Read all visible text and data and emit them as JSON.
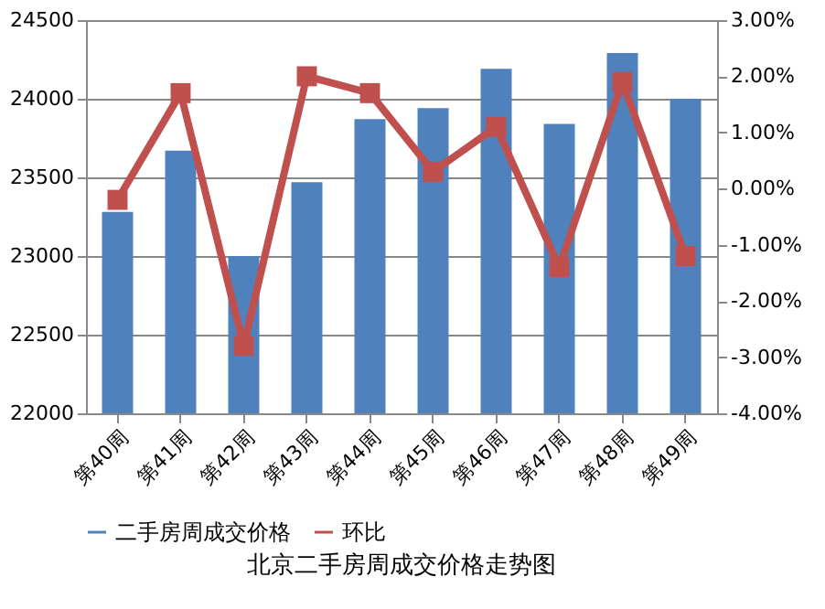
{
  "chart_data": {
    "type": "bar",
    "title": "北京二手房周成交价格走势图",
    "categories": [
      "第40周",
      "第41周",
      "第42周",
      "第43周",
      "第44周",
      "第45周",
      "第46周",
      "第47周",
      "第48周",
      "第49周"
    ],
    "series": [
      {
        "name": "二手房周成交价格",
        "color": "#4f81bd",
        "values": [
          23280,
          23670,
          23000,
          23470,
          23870,
          23940,
          24190,
          23840,
          24290,
          24000
        ]
      },
      {
        "name": "环比",
        "type": "line",
        "axis": "y2",
        "color": "#c0504d",
        "values": [
          -0.2,
          1.7,
          -2.8,
          2.0,
          1.7,
          0.3,
          1.1,
          -1.4,
          1.9,
          -1.2
        ]
      }
    ],
    "ylim": [
      22000,
      24500
    ],
    "yticks": [
      22000,
      22500,
      23000,
      23500,
      24000,
      24500
    ],
    "y2lim": [
      -4,
      3
    ],
    "y2ticks": [
      {
        "value": -4,
        "label": "-4.00%"
      },
      {
        "value": -3,
        "label": "-3.00%"
      },
      {
        "value": -2,
        "label": "-2.00%"
      },
      {
        "value": -1,
        "label": "-1.00%"
      },
      {
        "value": 0,
        "label": "0.00%"
      },
      {
        "value": 1,
        "label": "1.00%"
      },
      {
        "value": 2,
        "label": "2.00%"
      },
      {
        "value": 3,
        "label": "3.00%"
      }
    ],
    "grid": "y",
    "legend": "bottom",
    "marker": "square",
    "line_style": "solid"
  }
}
